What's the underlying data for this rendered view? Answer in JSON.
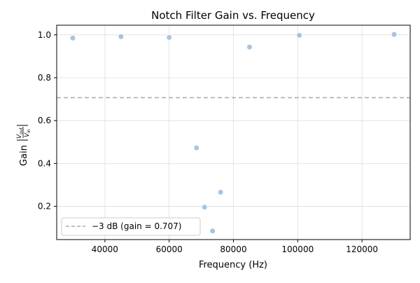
{
  "chart_data": {
    "type": "scatter",
    "title": "Notch Filter Gain vs. Frequency",
    "xlabel": "Frequency (Hz)",
    "ylabel_prefix": "Gain",
    "ylabel_fraction_num": "V",
    "ylabel_fraction_num_sub": "out",
    "ylabel_fraction_den": "V",
    "ylabel_fraction_den_sub": "in",
    "xlim": [
      25000,
      135000
    ],
    "ylim": [
      0.045,
      1.045
    ],
    "xticks": [
      40000,
      60000,
      80000,
      100000,
      120000
    ],
    "xtick_labels": [
      "40000",
      "60000",
      "80000",
      "100000",
      "120000"
    ],
    "yticks": [
      0.2,
      0.4,
      0.6,
      0.8,
      1.0
    ],
    "ytick_labels": [
      "0.2",
      "0.4",
      "0.6",
      "0.8",
      "1.0"
    ],
    "grid": true,
    "series": [
      {
        "x": [
          30000,
          45000,
          60000,
          68500,
          71000,
          73500,
          76000,
          85000,
          100500,
          130000
        ],
        "y": [
          0.985,
          0.992,
          0.988,
          0.473,
          0.196,
          0.085,
          0.266,
          0.943,
          0.998,
          1.002
        ],
        "color": "#a7c4e0"
      }
    ],
    "reference_line": {
      "y": 0.707,
      "label": "−3 dB (gain = 0.707)",
      "color": "#aaaaaa",
      "style": "dashed"
    },
    "legend": {
      "position": "lower-left",
      "entries": [
        "−3 dB (gain = 0.707)"
      ]
    }
  }
}
